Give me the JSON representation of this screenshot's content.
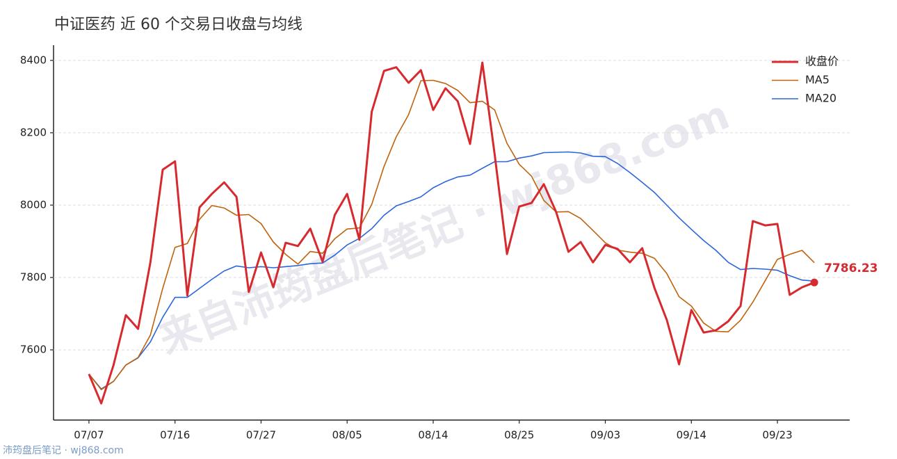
{
  "chart_data": {
    "type": "line",
    "title": "中证医药 近 60 个交易日收盘与均线",
    "watermark": "来自沛筠盘后笔记 · wj868.com",
    "footer": "沛筠盘后笔记 · wj868.com",
    "categories": [
      "07/07",
      null,
      null,
      null,
      null,
      null,
      null,
      "07/16",
      null,
      null,
      null,
      null,
      null,
      null,
      "07/27",
      null,
      null,
      null,
      null,
      null,
      null,
      "08/05",
      null,
      null,
      null,
      null,
      null,
      null,
      "08/14",
      null,
      null,
      null,
      null,
      null,
      null,
      "08/25",
      null,
      null,
      null,
      null,
      null,
      null,
      "09/03",
      null,
      null,
      null,
      null,
      null,
      null,
      "09/14",
      null,
      null,
      null,
      null,
      null,
      null,
      "09/23",
      null,
      null,
      null
    ],
    "ylim": [
      7406,
      8442
    ],
    "yticks": [
      7600,
      7800,
      8000,
      8200,
      8400
    ],
    "grid": true,
    "legend": "upper right",
    "series": [
      {
        "name": "收盘价",
        "color": "#d62a2f",
        "width": 3,
        "values": [
          7533,
          7452,
          7558,
          7696,
          7658,
          7842,
          8098,
          8121,
          7750,
          7994,
          8031,
          8063,
          8023,
          7760,
          7869,
          7773,
          7896,
          7887,
          7935,
          7844,
          7973,
          8031,
          7904,
          8258,
          8371,
          8381,
          8338,
          8373,
          8263,
          8323,
          8287,
          8169,
          8394,
          8140,
          7865,
          7996,
          8006,
          8058,
          7981,
          7871,
          7898,
          7842,
          7890,
          7879,
          7842,
          7881,
          7771,
          7683,
          7560,
          7710,
          7648,
          7654,
          7679,
          7721,
          7956,
          7944,
          7948,
          7752,
          7773,
          7786.23
        ]
      },
      {
        "name": "MA5",
        "color": "#c0620c",
        "width": 1.6,
        "values": [
          7533,
          7490,
          7513,
          7558,
          7579,
          7641,
          7770,
          7883,
          7894,
          7961,
          7999,
          7992,
          7972,
          7974,
          7949,
          7898,
          7864,
          7837,
          7872,
          7867,
          7907,
          7934,
          7937,
          8002,
          8107,
          8189,
          8250,
          8344,
          8345,
          8336,
          8317,
          8283,
          8287,
          8263,
          8171,
          8113,
          8080,
          8013,
          7981,
          7982,
          7963,
          7930,
          7896,
          7876,
          7870,
          7867,
          7853,
          7811,
          7747,
          7721,
          7674,
          7651,
          7650,
          7682,
          7732,
          7791,
          7850,
          7864,
          7875,
          7841
        ]
      },
      {
        "name": "MA20",
        "color": "#2a66d9",
        "width": 1.6,
        "values": [
          7533,
          7492,
          7513,
          7558,
          7578,
          7622,
          7690,
          7745,
          7745,
          7770,
          7795,
          7818,
          7832,
          7827,
          7830,
          7827,
          7830,
          7833,
          7838,
          7840,
          7862,
          7890,
          7908,
          7935,
          7972,
          7998,
          8010,
          8023,
          8048,
          8065,
          8078,
          8083,
          8102,
          8120,
          8120,
          8130,
          8136,
          8145,
          8146,
          8147,
          8144,
          8135,
          8134,
          8115,
          8090,
          8063,
          8035,
          8000,
          7965,
          7933,
          7902,
          7875,
          7842,
          7822,
          7825,
          7823,
          7820,
          7805,
          7793,
          7790
        ]
      }
    ]
  }
}
